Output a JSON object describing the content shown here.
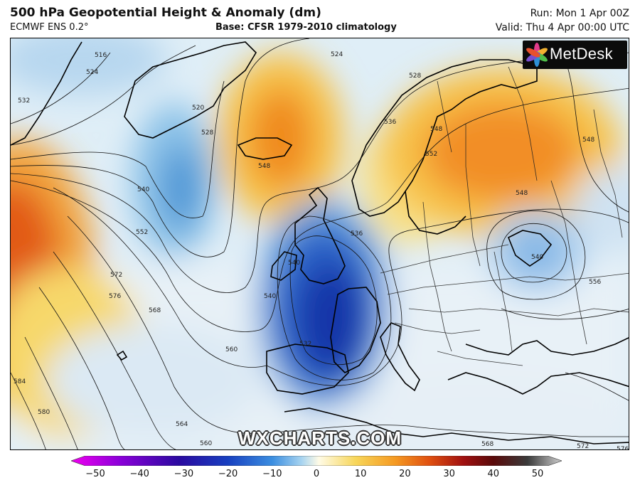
{
  "header": {
    "title": "500 hPa Geopotential Height & Anomaly (dm)",
    "model": "ECMWF ENS 0.2°",
    "base": "Base: CFSR 1979-2010 climatology",
    "run": "Run: Mon 1 Apr 00Z",
    "valid": "Valid: Thu 4 Apr 00:00 UTC"
  },
  "logo": {
    "text": "MetDesk"
  },
  "watermark": "WXCHARTS.COM",
  "contour_labels": [
    "516",
    "524",
    "532",
    "520",
    "528",
    "524",
    "536",
    "528",
    "548",
    "540",
    "548",
    "552",
    "548",
    "540",
    "548",
    "536",
    "556",
    "552",
    "572",
    "576",
    "568",
    "560",
    "584",
    "580",
    "564",
    "560",
    "568",
    "572",
    "576",
    "540",
    "532",
    "540"
  ],
  "colorbar": {
    "ticks": [
      "−50",
      "−40",
      "−30",
      "−20",
      "−10",
      "0",
      "10",
      "20",
      "30",
      "40",
      "50"
    ],
    "colors": [
      "#f000f0",
      "#8a00d8",
      "#2a0aa0",
      "#1840c0",
      "#3b8ee0",
      "#a8d4f0",
      "#fffbe6",
      "#f7d65a",
      "#f59a22",
      "#e05010",
      "#a01010",
      "#5a0a0a",
      "#3a3a3a",
      "#cfcfcf"
    ]
  }
}
